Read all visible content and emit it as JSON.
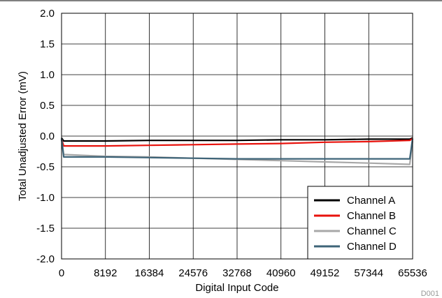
{
  "chart_data": {
    "type": "line",
    "xlabel": "Digital Input Code",
    "ylabel": "Total Unadjusted Error (mV)",
    "xlim": [
      0,
      65536
    ],
    "ylim": [
      -2.0,
      2.0
    ],
    "x_ticks": [
      0,
      8192,
      16384,
      24576,
      32768,
      40960,
      49152,
      57344,
      65536
    ],
    "x_tick_labels": [
      "0",
      "8192",
      "16384",
      "24576",
      "32768",
      "40960",
      "49152",
      "57344",
      "65536"
    ],
    "y_ticks": [
      -2.0,
      -1.5,
      -1.0,
      -0.5,
      0.0,
      0.5,
      1.0,
      1.5,
      2.0
    ],
    "y_tick_labels": [
      "-2.0",
      "-1.5",
      "-1.0",
      "-0.5",
      "0.0",
      "0.5",
      "1.0",
      "1.5",
      "2.0"
    ],
    "grid": true,
    "legend_position": "bottom-right",
    "footnote": "D001",
    "series": [
      {
        "name": "Channel A",
        "color": "#000000",
        "x": [
          0,
          400,
          8192,
          16384,
          24576,
          32768,
          40960,
          49152,
          57344,
          65000,
          65536
        ],
        "y": [
          -0.03,
          -0.08,
          -0.08,
          -0.07,
          -0.07,
          -0.07,
          -0.06,
          -0.06,
          -0.05,
          -0.05,
          -0.03
        ]
      },
      {
        "name": "Channel B",
        "color": "#e8120c",
        "x": [
          0,
          400,
          8192,
          16384,
          24576,
          32768,
          40960,
          49152,
          57344,
          65000,
          65536
        ],
        "y": [
          -0.05,
          -0.16,
          -0.16,
          -0.15,
          -0.14,
          -0.13,
          -0.12,
          -0.1,
          -0.09,
          -0.07,
          -0.04
        ]
      },
      {
        "name": "Channel C",
        "color": "#a8a8a8",
        "x": [
          0,
          400,
          8192,
          16384,
          24576,
          32768,
          40960,
          49152,
          57344,
          65000,
          65536
        ],
        "y": [
          -0.05,
          -0.3,
          -0.33,
          -0.34,
          -0.36,
          -0.38,
          -0.4,
          -0.42,
          -0.44,
          -0.46,
          -0.08
        ]
      },
      {
        "name": "Channel D",
        "color": "#3e6478",
        "x": [
          0,
          400,
          8192,
          16384,
          24576,
          32768,
          40960,
          49152,
          57344,
          65000,
          65536
        ],
        "y": [
          -0.04,
          -0.34,
          -0.34,
          -0.35,
          -0.36,
          -0.37,
          -0.37,
          -0.37,
          -0.37,
          -0.37,
          -0.04
        ]
      }
    ]
  }
}
